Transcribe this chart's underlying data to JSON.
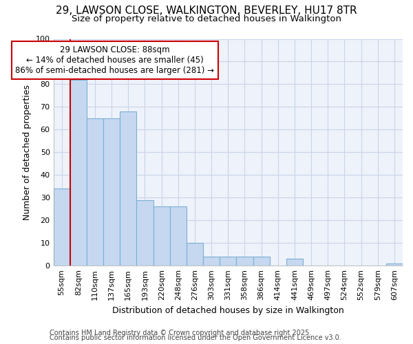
{
  "title_line1": "29, LAWSON CLOSE, WALKINGTON, BEVERLEY, HU17 8TR",
  "title_line2": "Size of property relative to detached houses in Walkington",
  "xlabel": "Distribution of detached houses by size in Walkington",
  "ylabel": "Number of detached properties",
  "categories": [
    "55sqm",
    "82sqm",
    "110sqm",
    "137sqm",
    "165sqm",
    "193sqm",
    "220sqm",
    "248sqm",
    "276sqm",
    "303sqm",
    "331sqm",
    "358sqm",
    "386sqm",
    "414sqm",
    "441sqm",
    "469sqm",
    "497sqm",
    "524sqm",
    "552sqm",
    "579sqm",
    "607sqm"
  ],
  "values": [
    34,
    82,
    65,
    65,
    68,
    29,
    26,
    26,
    10,
    4,
    4,
    4,
    4,
    0,
    3,
    0,
    0,
    0,
    0,
    0,
    1
  ],
  "bar_color": "#c5d8f0",
  "bar_edge_color": "#7bafd4",
  "vline_x_index": 1,
  "vline_color": "#cc0000",
  "annotation_text": "29 LAWSON CLOSE: 88sqm\n← 14% of detached houses are smaller (45)\n86% of semi-detached houses are larger (281) →",
  "annotation_box_color": "#ffffff",
  "annotation_box_edge": "#cc0000",
  "ylim": [
    0,
    100
  ],
  "yticks": [
    0,
    10,
    20,
    30,
    40,
    50,
    60,
    70,
    80,
    90,
    100
  ],
  "grid_color": "#c8d4e8",
  "background_color": "#ffffff",
  "plot_bg_color": "#eef2fa",
  "footer_line1": "Contains HM Land Registry data © Crown copyright and database right 2025.",
  "footer_line2": "Contains public sector information licensed under the Open Government Licence v3.0.",
  "title_fontsize": 11,
  "subtitle_fontsize": 9.5,
  "axis_label_fontsize": 9,
  "tick_fontsize": 8,
  "annotation_fontsize": 8.5,
  "footer_fontsize": 7
}
